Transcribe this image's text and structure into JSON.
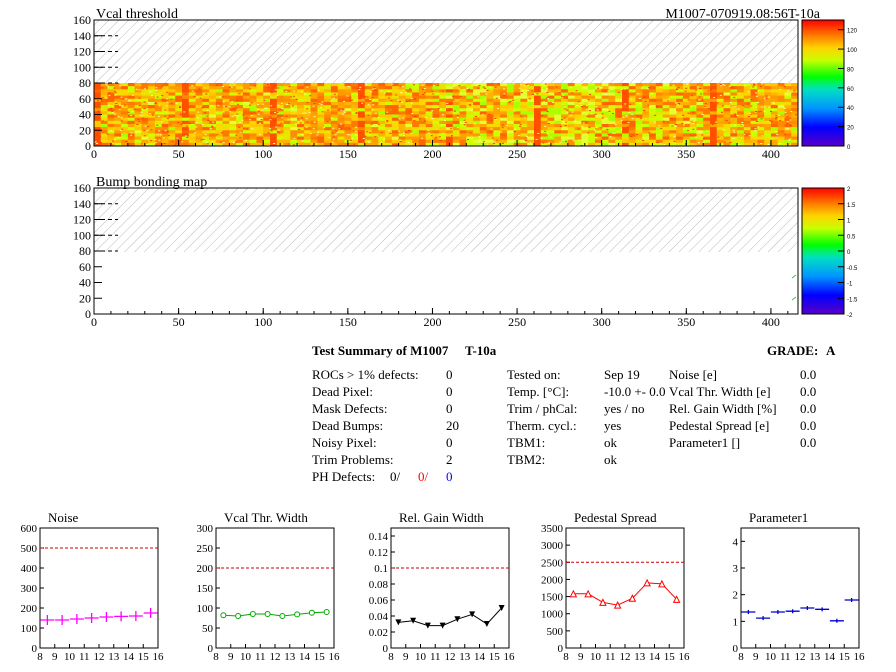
{
  "header": {
    "left_title": "Vcal threshold",
    "right_title": "M1007-070919.08:56T-10a"
  },
  "maps": [
    {
      "title": "Vcal threshold",
      "x_ticks": [
        "0",
        "50",
        "100",
        "150",
        "200",
        "250",
        "300",
        "350",
        "400"
      ],
      "y_ticks": [
        "0",
        "20",
        "40",
        "60",
        "80",
        "100",
        "120",
        "140",
        "160"
      ],
      "xlim": [
        0,
        416
      ],
      "ylim": [
        0,
        160
      ],
      "hatched_region": {
        "y_from": 80,
        "y_to": 160
      },
      "palette": "rainbow",
      "palette_ticks": [
        "0",
        "20",
        "40",
        "60",
        "80",
        "100",
        "120"
      ],
      "palette_range": [
        0,
        130
      ]
    },
    {
      "title": "Bump bonding map",
      "x_ticks": [
        "0",
        "50",
        "100",
        "150",
        "200",
        "250",
        "300",
        "350",
        "400"
      ],
      "y_ticks": [
        "0",
        "20",
        "40",
        "60",
        "80",
        "100",
        "120",
        "140",
        "160"
      ],
      "xlim": [
        0,
        416
      ],
      "ylim": [
        0,
        160
      ],
      "hatched_region": {
        "y_from": 80,
        "y_to": 160
      },
      "palette": "rainbow",
      "palette_ticks": [
        "-2",
        "-1.5",
        "-1",
        "-0.5",
        "0",
        "0.5",
        "1",
        "1.5",
        "2"
      ],
      "palette_range": [
        -2,
        2
      ]
    }
  ],
  "summary": {
    "title": "Test Summary of M1007",
    "subtitle": "T-10a",
    "grade_label": "GRADE:",
    "grade_value": "A",
    "col1": [
      {
        "label": "ROCs > 1% defects:",
        "value": "0"
      },
      {
        "label": "Dead Pixel:",
        "value": "0"
      },
      {
        "label": "Mask Defects:",
        "value": "0"
      },
      {
        "label": "Dead Bumps:",
        "value": "20"
      },
      {
        "label": "Noisy Pixel:",
        "value": "0"
      },
      {
        "label": "Trim Problems:",
        "value": "2"
      }
    ],
    "ph_defects": {
      "label": "PH Defects:",
      "v1": "0/",
      "v2": "0/",
      "v3": "0",
      "c1": "#000000",
      "c2": "#ff0000",
      "c3": "#0000ff"
    },
    "col2": [
      {
        "label": "Tested on:",
        "value": "Sep 19"
      },
      {
        "label": "Temp. [°C]:",
        "value": "-10.0 +- 0.0"
      },
      {
        "label": "Trim / phCal:",
        "value": "yes / no"
      },
      {
        "label": "Therm. cycl.:",
        "value": "yes"
      },
      {
        "label": "TBM1:",
        "value": "ok"
      },
      {
        "label": "TBM2:",
        "value": "ok"
      }
    ],
    "col3": [
      {
        "label": "Noise [e]",
        "value": "0.0"
      },
      {
        "label": "Vcal Thr. Width [e]",
        "value": "0.0"
      },
      {
        "label": "Rel. Gain Width [%]",
        "value": "0.0"
      },
      {
        "label": "Pedestal Spread [e]",
        "value": "0.0"
      },
      {
        "label": "Parameter1 []",
        "value": "0.0"
      }
    ]
  },
  "chart_data": [
    {
      "type": "scatter",
      "title": "Noise",
      "color": "#ff00ff",
      "marker": "cross",
      "x": [
        8.5,
        9.5,
        10.5,
        11.5,
        12.5,
        13.5,
        14.5,
        15.5
      ],
      "values": [
        140,
        140,
        145,
        150,
        155,
        158,
        160,
        175
      ],
      "xlim": [
        8,
        16
      ],
      "ylim": [
        0,
        600
      ],
      "x_ticks": [
        "8",
        "9",
        "10",
        "11",
        "12",
        "13",
        "14",
        "15",
        "16"
      ],
      "y_ticks": [
        "0",
        "100",
        "200",
        "300",
        "400",
        "500",
        "600"
      ],
      "y_tick_values": [
        0,
        100,
        200,
        300,
        400,
        500,
        600
      ],
      "threshold": 500,
      "connect": false
    },
    {
      "type": "line",
      "title": "Vcal Thr. Width",
      "color": "#00aa00",
      "marker": "circle",
      "x": [
        8.5,
        9.5,
        10.5,
        11.5,
        12.5,
        13.5,
        14.5,
        15.5
      ],
      "values": [
        82,
        80,
        85,
        85,
        80,
        84,
        88,
        90
      ],
      "xlim": [
        8,
        16
      ],
      "ylim": [
        0,
        300
      ],
      "x_ticks": [
        "8",
        "9",
        "10",
        "11",
        "12",
        "13",
        "14",
        "15",
        "16"
      ],
      "y_ticks": [
        "0",
        "50",
        "100",
        "150",
        "200",
        "250",
        "300"
      ],
      "y_tick_values": [
        0,
        50,
        100,
        150,
        200,
        250,
        300
      ],
      "threshold": 200,
      "connect": true
    },
    {
      "type": "line",
      "title": "Rel. Gain Width",
      "color": "#000000",
      "marker": "triangle-down",
      "x": [
        8.5,
        9.5,
        10.5,
        11.5,
        12.5,
        13.5,
        14.5,
        15.5
      ],
      "values": [
        0.032,
        0.034,
        0.028,
        0.028,
        0.036,
        0.042,
        0.03,
        0.05
      ],
      "xlim": [
        8,
        16
      ],
      "ylim": [
        0,
        0.15
      ],
      "x_ticks": [
        "8",
        "9",
        "10",
        "11",
        "12",
        "13",
        "14",
        "15",
        "16"
      ],
      "y_ticks": [
        "0",
        "0.02",
        "0.04",
        "0.06",
        "0.08",
        "0.1",
        "0.12",
        "0.14"
      ],
      "y_tick_values": [
        0,
        0.02,
        0.04,
        0.06,
        0.08,
        0.1,
        0.12,
        0.14
      ],
      "threshold": 0.1,
      "connect": true
    },
    {
      "type": "line",
      "title": "Pedestal Spread",
      "color": "#ff0000",
      "marker": "triangle-up",
      "x": [
        8.5,
        9.5,
        10.5,
        11.5,
        12.5,
        13.5,
        14.5,
        15.5
      ],
      "values": [
        1580,
        1580,
        1330,
        1250,
        1450,
        1900,
        1870,
        1420
      ],
      "xlim": [
        8,
        16
      ],
      "ylim": [
        0,
        3500
      ],
      "x_ticks": [
        "8",
        "9",
        "10",
        "11",
        "12",
        "13",
        "14",
        "15",
        "16"
      ],
      "y_ticks": [
        "0",
        "500",
        "1000",
        "1500",
        "2000",
        "2500",
        "3000",
        "3500"
      ],
      "y_tick_values": [
        0,
        500,
        1000,
        1500,
        2000,
        2500,
        3000,
        3500
      ],
      "threshold": 2500,
      "connect": true
    },
    {
      "type": "scatter",
      "title": "Parameter1",
      "color": "#0000cc",
      "marker": "hbar",
      "x": [
        8.5,
        9.5,
        10.5,
        11.5,
        12.5,
        13.5,
        14.5,
        15.5
      ],
      "values": [
        1.35,
        1.12,
        1.35,
        1.38,
        1.5,
        1.45,
        1.02,
        1.8
      ],
      "xlim": [
        8,
        16
      ],
      "ylim": [
        0,
        4.5
      ],
      "x_ticks": [
        "8",
        "9",
        "10",
        "11",
        "12",
        "13",
        "14",
        "15",
        "16"
      ],
      "y_ticks": [
        "0",
        "1",
        "2",
        "3",
        "4"
      ],
      "y_tick_values": [
        0,
        1,
        2,
        3,
        4
      ],
      "threshold": null,
      "connect": false
    }
  ]
}
